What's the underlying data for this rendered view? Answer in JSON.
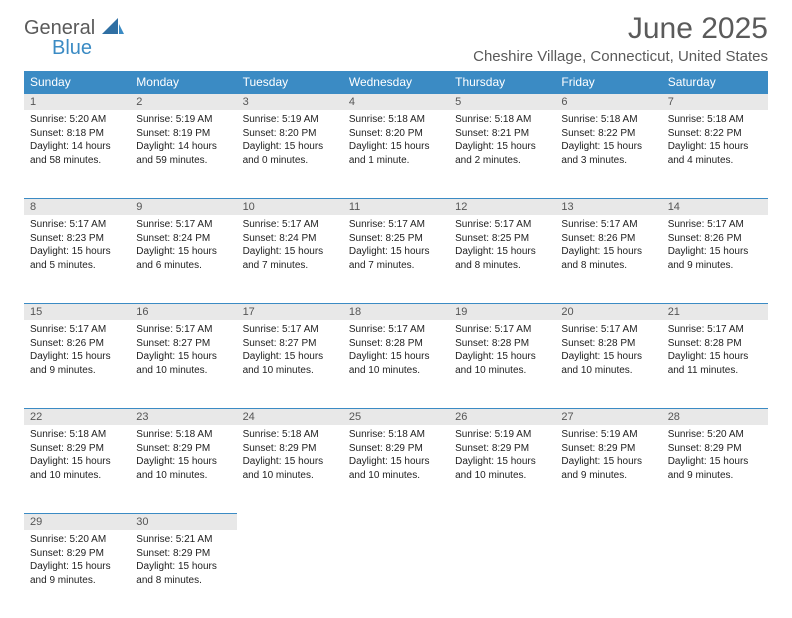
{
  "logo": {
    "general": "General",
    "blue": "Blue"
  },
  "header": {
    "month_title": "June 2025",
    "location": "Cheshire Village, Connecticut, United States"
  },
  "colors": {
    "header_bg": "#3b8bc4",
    "header_fg": "#ffffff",
    "daynum_bg": "#e8e8e8",
    "daynum_border": "#3b8bc4",
    "text": "#333333",
    "title_fg": "#5a5a5a"
  },
  "day_labels": [
    "Sunday",
    "Monday",
    "Tuesday",
    "Wednesday",
    "Thursday",
    "Friday",
    "Saturday"
  ],
  "weeks": [
    [
      {
        "n": "1",
        "sr": "Sunrise: 5:20 AM",
        "ss": "Sunset: 8:18 PM",
        "dl": "Daylight: 14 hours and 58 minutes."
      },
      {
        "n": "2",
        "sr": "Sunrise: 5:19 AM",
        "ss": "Sunset: 8:19 PM",
        "dl": "Daylight: 14 hours and 59 minutes."
      },
      {
        "n": "3",
        "sr": "Sunrise: 5:19 AM",
        "ss": "Sunset: 8:20 PM",
        "dl": "Daylight: 15 hours and 0 minutes."
      },
      {
        "n": "4",
        "sr": "Sunrise: 5:18 AM",
        "ss": "Sunset: 8:20 PM",
        "dl": "Daylight: 15 hours and 1 minute."
      },
      {
        "n": "5",
        "sr": "Sunrise: 5:18 AM",
        "ss": "Sunset: 8:21 PM",
        "dl": "Daylight: 15 hours and 2 minutes."
      },
      {
        "n": "6",
        "sr": "Sunrise: 5:18 AM",
        "ss": "Sunset: 8:22 PM",
        "dl": "Daylight: 15 hours and 3 minutes."
      },
      {
        "n": "7",
        "sr": "Sunrise: 5:18 AM",
        "ss": "Sunset: 8:22 PM",
        "dl": "Daylight: 15 hours and 4 minutes."
      }
    ],
    [
      {
        "n": "8",
        "sr": "Sunrise: 5:17 AM",
        "ss": "Sunset: 8:23 PM",
        "dl": "Daylight: 15 hours and 5 minutes."
      },
      {
        "n": "9",
        "sr": "Sunrise: 5:17 AM",
        "ss": "Sunset: 8:24 PM",
        "dl": "Daylight: 15 hours and 6 minutes."
      },
      {
        "n": "10",
        "sr": "Sunrise: 5:17 AM",
        "ss": "Sunset: 8:24 PM",
        "dl": "Daylight: 15 hours and 7 minutes."
      },
      {
        "n": "11",
        "sr": "Sunrise: 5:17 AM",
        "ss": "Sunset: 8:25 PM",
        "dl": "Daylight: 15 hours and 7 minutes."
      },
      {
        "n": "12",
        "sr": "Sunrise: 5:17 AM",
        "ss": "Sunset: 8:25 PM",
        "dl": "Daylight: 15 hours and 8 minutes."
      },
      {
        "n": "13",
        "sr": "Sunrise: 5:17 AM",
        "ss": "Sunset: 8:26 PM",
        "dl": "Daylight: 15 hours and 8 minutes."
      },
      {
        "n": "14",
        "sr": "Sunrise: 5:17 AM",
        "ss": "Sunset: 8:26 PM",
        "dl": "Daylight: 15 hours and 9 minutes."
      }
    ],
    [
      {
        "n": "15",
        "sr": "Sunrise: 5:17 AM",
        "ss": "Sunset: 8:26 PM",
        "dl": "Daylight: 15 hours and 9 minutes."
      },
      {
        "n": "16",
        "sr": "Sunrise: 5:17 AM",
        "ss": "Sunset: 8:27 PM",
        "dl": "Daylight: 15 hours and 10 minutes."
      },
      {
        "n": "17",
        "sr": "Sunrise: 5:17 AM",
        "ss": "Sunset: 8:27 PM",
        "dl": "Daylight: 15 hours and 10 minutes."
      },
      {
        "n": "18",
        "sr": "Sunrise: 5:17 AM",
        "ss": "Sunset: 8:28 PM",
        "dl": "Daylight: 15 hours and 10 minutes."
      },
      {
        "n": "19",
        "sr": "Sunrise: 5:17 AM",
        "ss": "Sunset: 8:28 PM",
        "dl": "Daylight: 15 hours and 10 minutes."
      },
      {
        "n": "20",
        "sr": "Sunrise: 5:17 AM",
        "ss": "Sunset: 8:28 PM",
        "dl": "Daylight: 15 hours and 10 minutes."
      },
      {
        "n": "21",
        "sr": "Sunrise: 5:17 AM",
        "ss": "Sunset: 8:28 PM",
        "dl": "Daylight: 15 hours and 11 minutes."
      }
    ],
    [
      {
        "n": "22",
        "sr": "Sunrise: 5:18 AM",
        "ss": "Sunset: 8:29 PM",
        "dl": "Daylight: 15 hours and 10 minutes."
      },
      {
        "n": "23",
        "sr": "Sunrise: 5:18 AM",
        "ss": "Sunset: 8:29 PM",
        "dl": "Daylight: 15 hours and 10 minutes."
      },
      {
        "n": "24",
        "sr": "Sunrise: 5:18 AM",
        "ss": "Sunset: 8:29 PM",
        "dl": "Daylight: 15 hours and 10 minutes."
      },
      {
        "n": "25",
        "sr": "Sunrise: 5:18 AM",
        "ss": "Sunset: 8:29 PM",
        "dl": "Daylight: 15 hours and 10 minutes."
      },
      {
        "n": "26",
        "sr": "Sunrise: 5:19 AM",
        "ss": "Sunset: 8:29 PM",
        "dl": "Daylight: 15 hours and 10 minutes."
      },
      {
        "n": "27",
        "sr": "Sunrise: 5:19 AM",
        "ss": "Sunset: 8:29 PM",
        "dl": "Daylight: 15 hours and 9 minutes."
      },
      {
        "n": "28",
        "sr": "Sunrise: 5:20 AM",
        "ss": "Sunset: 8:29 PM",
        "dl": "Daylight: 15 hours and 9 minutes."
      }
    ],
    [
      {
        "n": "29",
        "sr": "Sunrise: 5:20 AM",
        "ss": "Sunset: 8:29 PM",
        "dl": "Daylight: 15 hours and 9 minutes."
      },
      {
        "n": "30",
        "sr": "Sunrise: 5:21 AM",
        "ss": "Sunset: 8:29 PM",
        "dl": "Daylight: 15 hours and 8 minutes."
      },
      null,
      null,
      null,
      null,
      null
    ]
  ]
}
